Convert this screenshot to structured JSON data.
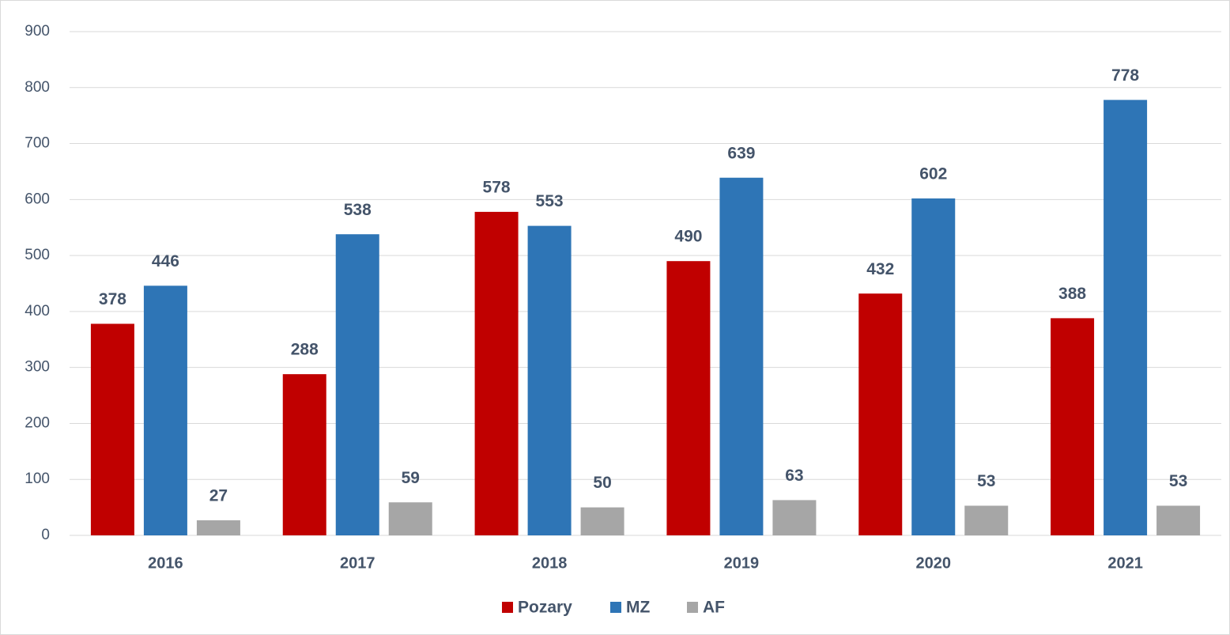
{
  "chart_data": {
    "type": "bar",
    "categories": [
      "2016",
      "2017",
      "2018",
      "2019",
      "2020",
      "2021"
    ],
    "series": [
      {
        "name": "Pozary",
        "color": "#c00000",
        "values": [
          378,
          288,
          578,
          490,
          432,
          388
        ]
      },
      {
        "name": "MZ",
        "color": "#2e75b6",
        "values": [
          446,
          538,
          553,
          639,
          602,
          778
        ]
      },
      {
        "name": "AF",
        "color": "#a6a6a6",
        "values": [
          27,
          59,
          50,
          63,
          53,
          53
        ]
      }
    ],
    "ylim": [
      0,
      900
    ],
    "yticks": [
      0,
      100,
      200,
      300,
      400,
      500,
      600,
      700,
      800,
      900
    ],
    "grid": true,
    "legend": "bottom"
  }
}
